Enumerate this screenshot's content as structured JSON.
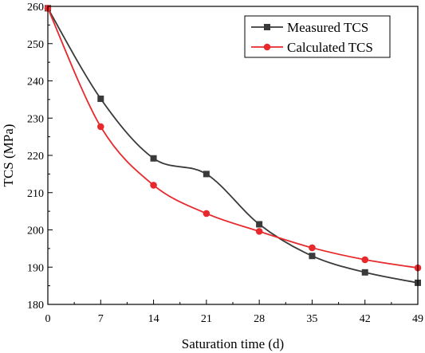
{
  "chart_data": {
    "type": "line",
    "xlabel": "Saturation time (d)",
    "ylabel": "TCS (MPa)",
    "xlim": [
      0,
      49
    ],
    "ylim": [
      180,
      260
    ],
    "x_ticks": [
      0,
      7,
      14,
      21,
      28,
      35,
      42,
      49
    ],
    "y_ticks": [
      180,
      190,
      200,
      210,
      220,
      230,
      240,
      250,
      260
    ],
    "grid": false,
    "legend_position": "top-right",
    "x": [
      0,
      7,
      14,
      21,
      28,
      35,
      42,
      49
    ],
    "series": [
      {
        "name": "Measured TCS",
        "marker": "square",
        "color": "#3a3a3a",
        "values": [
          259.5,
          235.2,
          219.2,
          215.0,
          201.5,
          193.0,
          188.6,
          185.8
        ]
      },
      {
        "name": "Calculated TCS",
        "marker": "circle",
        "color": "#e8292c",
        "values": [
          259.5,
          227.7,
          212.0,
          204.4,
          199.6,
          195.2,
          192.0,
          189.8
        ]
      }
    ]
  }
}
